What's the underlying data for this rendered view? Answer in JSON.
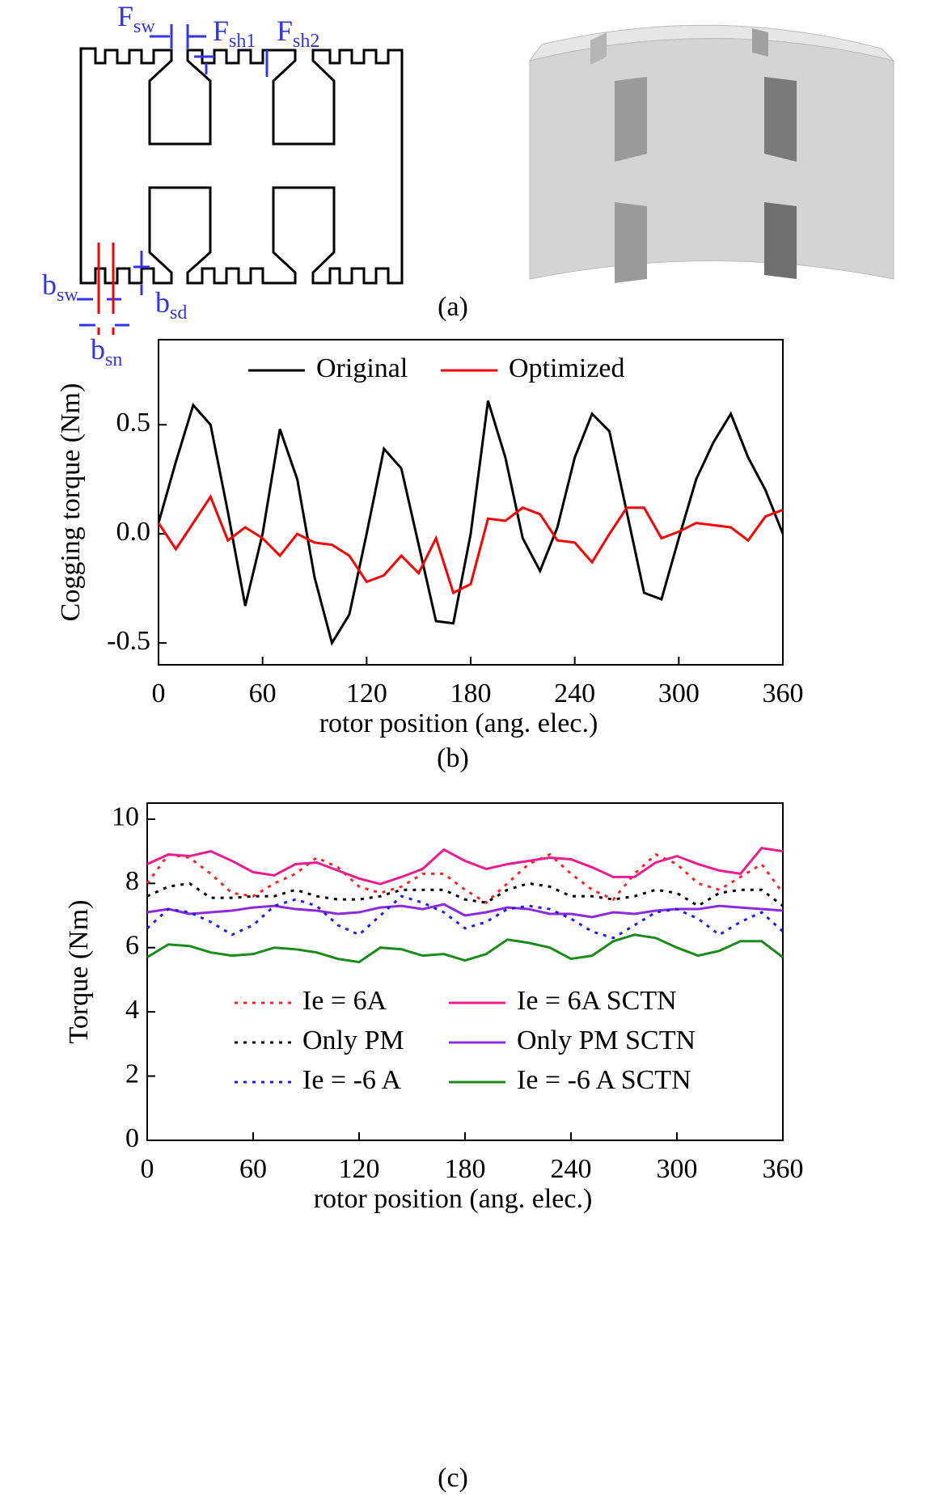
{
  "diagram": {
    "labels": [
      {
        "main": "F",
        "sub": "sw"
      },
      {
        "main": "F",
        "sub": "sh1"
      },
      {
        "main": "F",
        "sub": "sh2"
      },
      {
        "main": "b",
        "sub": "sw"
      },
      {
        "main": "b",
        "sub": "sd"
      },
      {
        "main": "b",
        "sub": "sn"
      }
    ],
    "caption": "(a)"
  },
  "chart_data": [
    {
      "type": "line",
      "caption": "(b)",
      "xlabel": "rotor position (ang. elec.)",
      "ylabel": "Cogging torque (Nm)",
      "xlim": [
        0,
        360
      ],
      "xticks": [
        0,
        60,
        120,
        180,
        240,
        300,
        360
      ],
      "ylim": [
        -0.6,
        0.89
      ],
      "yticks": [
        -0.5,
        {
          "value": 0,
          "label": "0.0"
        },
        0.5
      ],
      "x": [
        0,
        10,
        20,
        30,
        40,
        50,
        60,
        70,
        80,
        90,
        100,
        110,
        120,
        130,
        140,
        150,
        160,
        170,
        180,
        190,
        200,
        210,
        220,
        230,
        240,
        250,
        260,
        270,
        280,
        290,
        300,
        310,
        320,
        330,
        340,
        350,
        360
      ],
      "series": [
        {
          "name": "Original",
          "color": "#000000",
          "line_style": "solid",
          "values": [
            0.05,
            0.33,
            0.59,
            0.5,
            0.1,
            -0.33,
            0.0,
            0.48,
            0.25,
            -0.2,
            -0.5,
            -0.37,
            0.0,
            0.39,
            0.3,
            -0.05,
            -0.4,
            -0.41,
            0.0,
            0.61,
            0.35,
            -0.02,
            -0.17,
            0.03,
            0.35,
            0.55,
            0.47,
            0.1,
            -0.27,
            -0.3,
            -0.02,
            0.25,
            0.42,
            0.55,
            0.35,
            0.2,
            0.0
          ]
        },
        {
          "name": "Optimized",
          "color": "#ff0000",
          "line_style": "solid",
          "values": [
            0.05,
            -0.07,
            0.05,
            0.17,
            -0.03,
            0.03,
            -0.02,
            -0.1,
            0.0,
            -0.04,
            -0.05,
            -0.1,
            -0.22,
            -0.19,
            -0.1,
            -0.18,
            -0.02,
            -0.27,
            -0.23,
            0.07,
            0.06,
            0.12,
            0.09,
            -0.03,
            -0.04,
            -0.13,
            0.0,
            0.12,
            0.12,
            -0.02,
            0.01,
            0.05,
            0.04,
            0.03,
            -0.03,
            0.08,
            0.11
          ]
        }
      ]
    },
    {
      "type": "line",
      "caption": "(c)",
      "xlabel": "rotor position (ang. elec.)",
      "ylabel": "Torque (Nm)",
      "xlim": [
        0,
        360
      ],
      "xticks": [
        0,
        60,
        120,
        180,
        240,
        300,
        360
      ],
      "ylim": [
        0,
        10.5
      ],
      "yticks": [
        0,
        2,
        4,
        6,
        8,
        10
      ],
      "x": [
        0,
        12,
        24,
        36,
        48,
        60,
        72,
        84,
        96,
        108,
        120,
        132,
        144,
        156,
        168,
        180,
        192,
        204,
        216,
        228,
        240,
        252,
        264,
        276,
        288,
        300,
        312,
        324,
        336,
        348,
        360
      ],
      "series": [
        {
          "name": "Ie = 6A",
          "color": "#ff2020",
          "line_style": "dotted",
          "values": [
            8.0,
            8.9,
            8.8,
            8.3,
            7.7,
            7.6,
            8.0,
            8.3,
            8.8,
            8.5,
            7.9,
            7.7,
            7.9,
            8.3,
            8.3,
            7.8,
            7.4,
            8.0,
            8.6,
            8.9,
            8.3,
            7.8,
            7.5,
            8.3,
            8.9,
            8.6,
            8.0,
            7.8,
            8.2,
            8.6,
            7.7
          ]
        },
        {
          "name": "Ie = 6A SCTN",
          "color": "#ee1c8c",
          "line_style": "solid",
          "values": [
            8.6,
            8.9,
            8.85,
            9.0,
            8.7,
            8.35,
            8.25,
            8.6,
            8.65,
            8.4,
            8.15,
            7.98,
            8.2,
            8.45,
            9.05,
            8.7,
            8.45,
            8.6,
            8.7,
            8.8,
            8.75,
            8.5,
            8.2,
            8.2,
            8.65,
            8.85,
            8.6,
            8.4,
            8.3,
            9.1,
            9.0
          ]
        },
        {
          "name": "Only PM",
          "color": "#000000",
          "line_style": "dotted",
          "values": [
            7.6,
            7.9,
            8.0,
            7.55,
            7.55,
            7.6,
            7.6,
            7.8,
            7.6,
            7.5,
            7.5,
            7.6,
            7.8,
            7.8,
            7.8,
            7.5,
            7.4,
            7.8,
            8.0,
            7.9,
            7.6,
            7.6,
            7.5,
            7.6,
            7.8,
            7.7,
            7.3,
            7.7,
            7.8,
            7.8,
            7.3
          ]
        },
        {
          "name": "Only PM SCTN",
          "color": "#8b2be0",
          "line_style": "solid",
          "values": [
            7.1,
            7.2,
            7.05,
            7.1,
            7.15,
            7.25,
            7.3,
            7.2,
            7.15,
            7.05,
            7.1,
            7.25,
            7.3,
            7.2,
            7.35,
            7.0,
            7.1,
            7.25,
            7.2,
            7.05,
            7.05,
            6.95,
            7.1,
            7.05,
            7.15,
            7.2,
            7.2,
            7.3,
            7.25,
            7.2,
            7.15
          ]
        },
        {
          "name": "Ie = -6 A",
          "color": "#1a1aff",
          "line_style": "dotted",
          "values": [
            6.6,
            7.2,
            7.1,
            6.8,
            6.4,
            6.7,
            7.3,
            7.5,
            7.3,
            6.7,
            6.4,
            7.0,
            7.6,
            7.4,
            7.1,
            6.6,
            6.8,
            7.2,
            7.3,
            7.2,
            6.9,
            6.5,
            6.3,
            6.7,
            7.1,
            7.2,
            6.9,
            6.4,
            6.8,
            7.1,
            6.5
          ]
        },
        {
          "name": "Ie = -6 A SCTN",
          "color": "#1a8a1a",
          "line_style": "solid",
          "values": [
            5.7,
            6.1,
            6.05,
            5.85,
            5.75,
            5.8,
            6.0,
            5.95,
            5.85,
            5.65,
            5.55,
            6.0,
            5.95,
            5.75,
            5.8,
            5.6,
            5.8,
            6.25,
            6.15,
            6.0,
            5.65,
            5.75,
            6.2,
            6.4,
            6.3,
            6.0,
            5.75,
            5.9,
            6.2,
            6.2,
            5.7
          ]
        }
      ]
    }
  ]
}
